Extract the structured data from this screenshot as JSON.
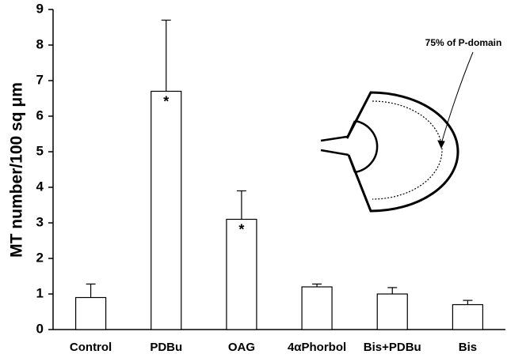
{
  "chart_data": {
    "type": "bar",
    "ylabel": "MT number/100 sq μm",
    "categories": [
      "Control",
      "PDBu",
      "OAG",
      "4αPhorbol",
      "Bis+PDBu",
      "Bis"
    ],
    "values": [
      0.9,
      6.7,
      3.1,
      1.2,
      1.0,
      0.7
    ],
    "errors": [
      0.38,
      2.0,
      0.8,
      0.08,
      0.18,
      0.12
    ],
    "significance": [
      null,
      "*",
      "*",
      null,
      null,
      null
    ],
    "color": "#ffffff",
    "ylim": [
      0,
      9
    ],
    "yticks": [
      0,
      1,
      2,
      3,
      4,
      5,
      6,
      7,
      8,
      9
    ],
    "inset_label": "75% of P-domain"
  }
}
